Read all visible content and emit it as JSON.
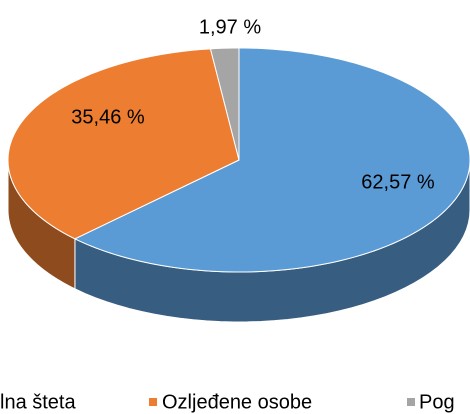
{
  "chart_data": {
    "type": "pie3d",
    "categories": [
      "lna šteta",
      "Ozljeđene osobe",
      "Pog"
    ],
    "values": [
      62.57,
      35.46,
      1.97
    ],
    "value_labels": [
      "62,57 %",
      "35,46 %",
      "1,97 %"
    ],
    "colors": [
      "#5b9bd5",
      "#ed7d31",
      "#a5a5a5"
    ],
    "legend": "bottom"
  }
}
